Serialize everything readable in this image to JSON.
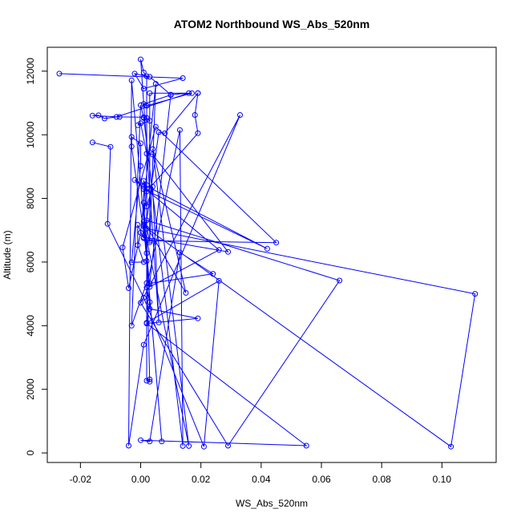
{
  "chart_data": {
    "type": "line",
    "title": "ATOM2 Northbound WS_Abs_520nm",
    "xlabel": "WS_Abs_520nm",
    "ylabel": "Altitude (m)",
    "xlim": [
      -0.031,
      0.118
    ],
    "ylim": [
      -300,
      12750
    ],
    "xticks": [
      -0.02,
      0.0,
      0.02,
      0.04,
      0.06,
      0.08,
      0.1
    ],
    "xtick_labels": [
      "-0.02",
      "0.00",
      "0.02",
      "0.04",
      "0.06",
      "0.08",
      "0.10"
    ],
    "yticks": [
      0,
      2000,
      4000,
      6000,
      8000,
      10000,
      12000
    ],
    "ytick_labels": [
      "0",
      "2000",
      "4000",
      "6000",
      "8000",
      "10000",
      "12000"
    ],
    "grid": false,
    "series": [
      {
        "color": "#0000ff",
        "marker": "open-circle",
        "x": [
          -0.027,
          0.014,
          0.001,
          -0.002,
          0.003,
          0.01,
          0.016,
          -0.008,
          -0.012,
          -0.014,
          -0.016,
          -0.007,
          0.001,
          0.002,
          0.003,
          -0.001,
          0.0,
          0.002,
          0.004,
          0.029,
          0.001,
          0.002,
          0.003,
          0.019,
          0.002,
          0.055,
          0.0,
          0.003,
          0.013,
          0.024,
          0.003,
          0.01,
          0.001,
          0.002,
          0.017,
          0.003,
          0.003,
          0.005,
          0.0,
          -0.004,
          -0.006,
          0.005,
          0.045,
          0.003,
          0.002,
          0.111,
          0.103,
          0.001,
          0.007,
          0.001,
          0.016,
          0.004,
          0.015,
          0.001,
          0.002,
          0.001,
          0.001,
          0.002,
          0.019,
          0.018,
          0.019,
          0.019,
          0.008,
          0.006,
          0.002,
          0.066,
          0.029,
          0.0,
          0.033,
          0.001,
          -0.004,
          -0.003,
          0.003,
          0.026,
          -0.002,
          0.042,
          0.001,
          0.001,
          -0.001,
          -0.001,
          0.001,
          -0.003,
          0.0,
          0.0,
          -0.003,
          -0.003,
          0.002,
          0.001,
          0.002,
          0.004,
          0.006,
          0.0,
          0.001,
          0.002,
          0.002,
          0.003,
          0.003,
          0.002,
          0.002,
          -0.003,
          0.0,
          0.001,
          0.014,
          0.013,
          0.002,
          0.003,
          0.002,
          0.026,
          0.021,
          0.001,
          -0.011,
          -0.01,
          -0.016
        ],
        "y": [
          11920,
          11780,
          11450,
          11920,
          11820,
          11260,
          11310,
          10560,
          10510,
          10610,
          10600,
          10560,
          10550,
          10530,
          10440,
          10300,
          10360,
          9410,
          9380,
          6320,
          6780,
          6700,
          4530,
          4230,
          4070,
          230,
          400,
          360,
          6300,
          5630,
          5330,
          11250,
          10970,
          10910,
          11310,
          11310,
          6620,
          11600,
          6920,
          5180,
          6460,
          10250,
          6610,
          6670,
          7050,
          5000,
          200,
          7130,
          360,
          7180,
          220,
          9550,
          5030,
          7280,
          8420,
          8550,
          8370,
          8220,
          10050,
          10620,
          11310,
          11310,
          10050,
          10080,
          7310,
          5420,
          230,
          4720,
          10620,
          3400,
          230,
          11710,
          5220,
          6380,
          8580,
          6420,
          8290,
          6750,
          7170,
          6530,
          6000,
          5990,
          9020,
          9730,
          9930,
          9630,
          6280,
          7870,
          7750,
          8370,
          4100,
          12370,
          11960,
          11840,
          2270,
          2310,
          2240,
          6030,
          5340,
          4000,
          10930,
          10530,
          220,
          10150,
          5200,
          4740,
          4090,
          5410,
          200,
          4880,
          7200,
          9620,
          9760
        ]
      }
    ]
  }
}
